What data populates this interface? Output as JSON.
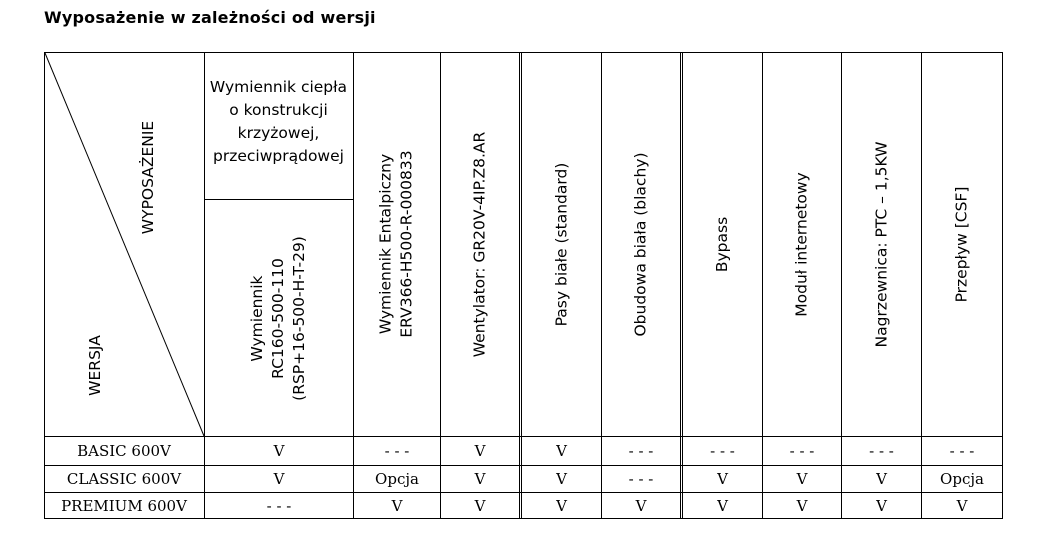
{
  "title": "Wyposażenie w zależności od wersji",
  "corner": {
    "top_label": "WYPOSAŻENIE",
    "bottom_label": "WERSJA"
  },
  "columns": [
    {
      "group_lines": [
        "Wymiennik ciepła",
        "o konstrukcji",
        "krzyżowej,",
        "przeciwprądowej"
      ],
      "lines": [
        "Wymiennik",
        "RC160-500-110",
        "(RSP+16-500-H-T-29)"
      ]
    },
    {
      "lines": [
        "Wymiennik Entalpiczny",
        "ERV366-H500-R-000833"
      ]
    },
    {
      "lines": [
        "Wentylator: GR20V-4IP.Z8.AR"
      ]
    },
    {
      "lines": [
        "Pasy białe (standard)"
      ]
    },
    {
      "lines": [
        "Obudowa biała (blachy)"
      ]
    },
    {
      "lines": [
        "Bypass"
      ]
    },
    {
      "lines": [
        "Moduł internetowy"
      ]
    },
    {
      "lines": [
        "Nagrzewnica: PTC – 1,5KW"
      ]
    },
    {
      "lines": [
        "Przepływ [CSF]"
      ]
    }
  ],
  "rows": [
    {
      "label": "BASIC 600V",
      "values": [
        "V",
        "- - -",
        "V",
        "V",
        "- - -",
        "- - -",
        "- - -",
        "- - -",
        "- - -"
      ]
    },
    {
      "label": "CLASSIC 600V",
      "values": [
        "V",
        "Opcja",
        "V",
        "V",
        "- - -",
        "V",
        "V",
        "V",
        "Opcja"
      ]
    },
    {
      "label": "PREMIUM 600V",
      "values": [
        "- - -",
        "V",
        "V",
        "V",
        "V",
        "V",
        "V",
        "V",
        "V"
      ]
    }
  ]
}
